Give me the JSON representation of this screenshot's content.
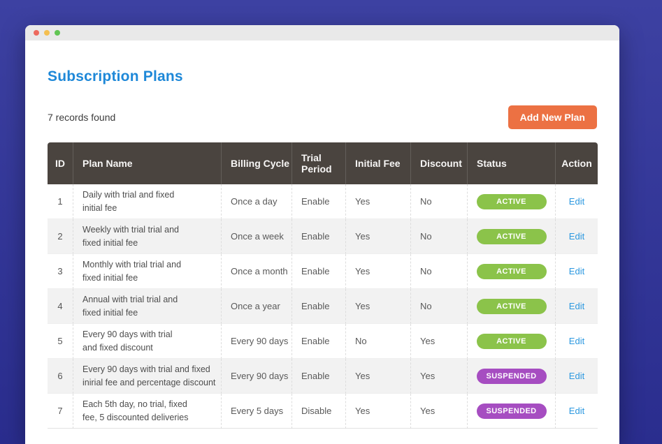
{
  "colors": {
    "bg_top": "#3d41a2",
    "bg_bottom": "#2a2d8e",
    "titlebar": "#e9e9e9",
    "title_blue": "#1e88d8",
    "btn_orange": "#ec7143",
    "header_dark": "#4a443f",
    "green": "#8bc34a",
    "purple": "#a64dc1",
    "link_blue": "#2b98e0"
  },
  "window": {
    "traffic_lights": [
      "#ed6a5e",
      "#f4bf50",
      "#61c554"
    ]
  },
  "page": {
    "title": "Subscription Plans",
    "records_text": "7 records found",
    "add_button_label": "Add New Plan"
  },
  "table": {
    "columns": [
      "ID",
      "Plan Name",
      "Billing Cycle",
      "Trial Period",
      "Initial Fee",
      "Discount",
      "Status",
      "Action"
    ],
    "rows": [
      {
        "id": "1",
        "plan_name": "Daily with trial and fixed\ninitial fee",
        "billing_cycle": "Once a day",
        "trial_period": "Enable",
        "initial_fee": "Yes",
        "discount": "No",
        "status": "ACTIVE",
        "action": "Edit"
      },
      {
        "id": "2",
        "plan_name": "Weekly with trial trial and\nfixed initial fee",
        "billing_cycle": "Once a week",
        "trial_period": "Enable",
        "initial_fee": "Yes",
        "discount": "No",
        "status": "ACTIVE",
        "action": "Edit"
      },
      {
        "id": "3",
        "plan_name": "Monthly with trial trial and\nfixed initial fee",
        "billing_cycle": "Once a month",
        "trial_period": "Enable",
        "initial_fee": "Yes",
        "discount": "No",
        "status": "ACTIVE",
        "action": "Edit"
      },
      {
        "id": "4",
        "plan_name": "Annual with trial trial and\nfixed initial fee",
        "billing_cycle": "Once a year",
        "trial_period": "Enable",
        "initial_fee": "Yes",
        "discount": "No",
        "status": "ACTIVE",
        "action": "Edit"
      },
      {
        "id": "5",
        "plan_name": "Every 90 days with trial\nand fixed discount",
        "billing_cycle": "Every 90 days",
        "trial_period": "Enable",
        "initial_fee": "No",
        "discount": "Yes",
        "status": "ACTIVE",
        "action": "Edit"
      },
      {
        "id": "6",
        "plan_name": "Every 90 days with trial and fixed\ninirial fee and percentage discount",
        "billing_cycle": "Every 90 days",
        "trial_period": "Enable",
        "initial_fee": "Yes",
        "discount": "Yes",
        "status": "SUSPENDED",
        "action": "Edit"
      },
      {
        "id": "7",
        "plan_name": "Each 5th day, no trial, fixed\nfee, 5 discounted deliveries",
        "billing_cycle": "Every 5 days",
        "trial_period": "Disable",
        "initial_fee": "Yes",
        "discount": "Yes",
        "status": "SUSPENDED",
        "action": "Edit"
      }
    ]
  }
}
